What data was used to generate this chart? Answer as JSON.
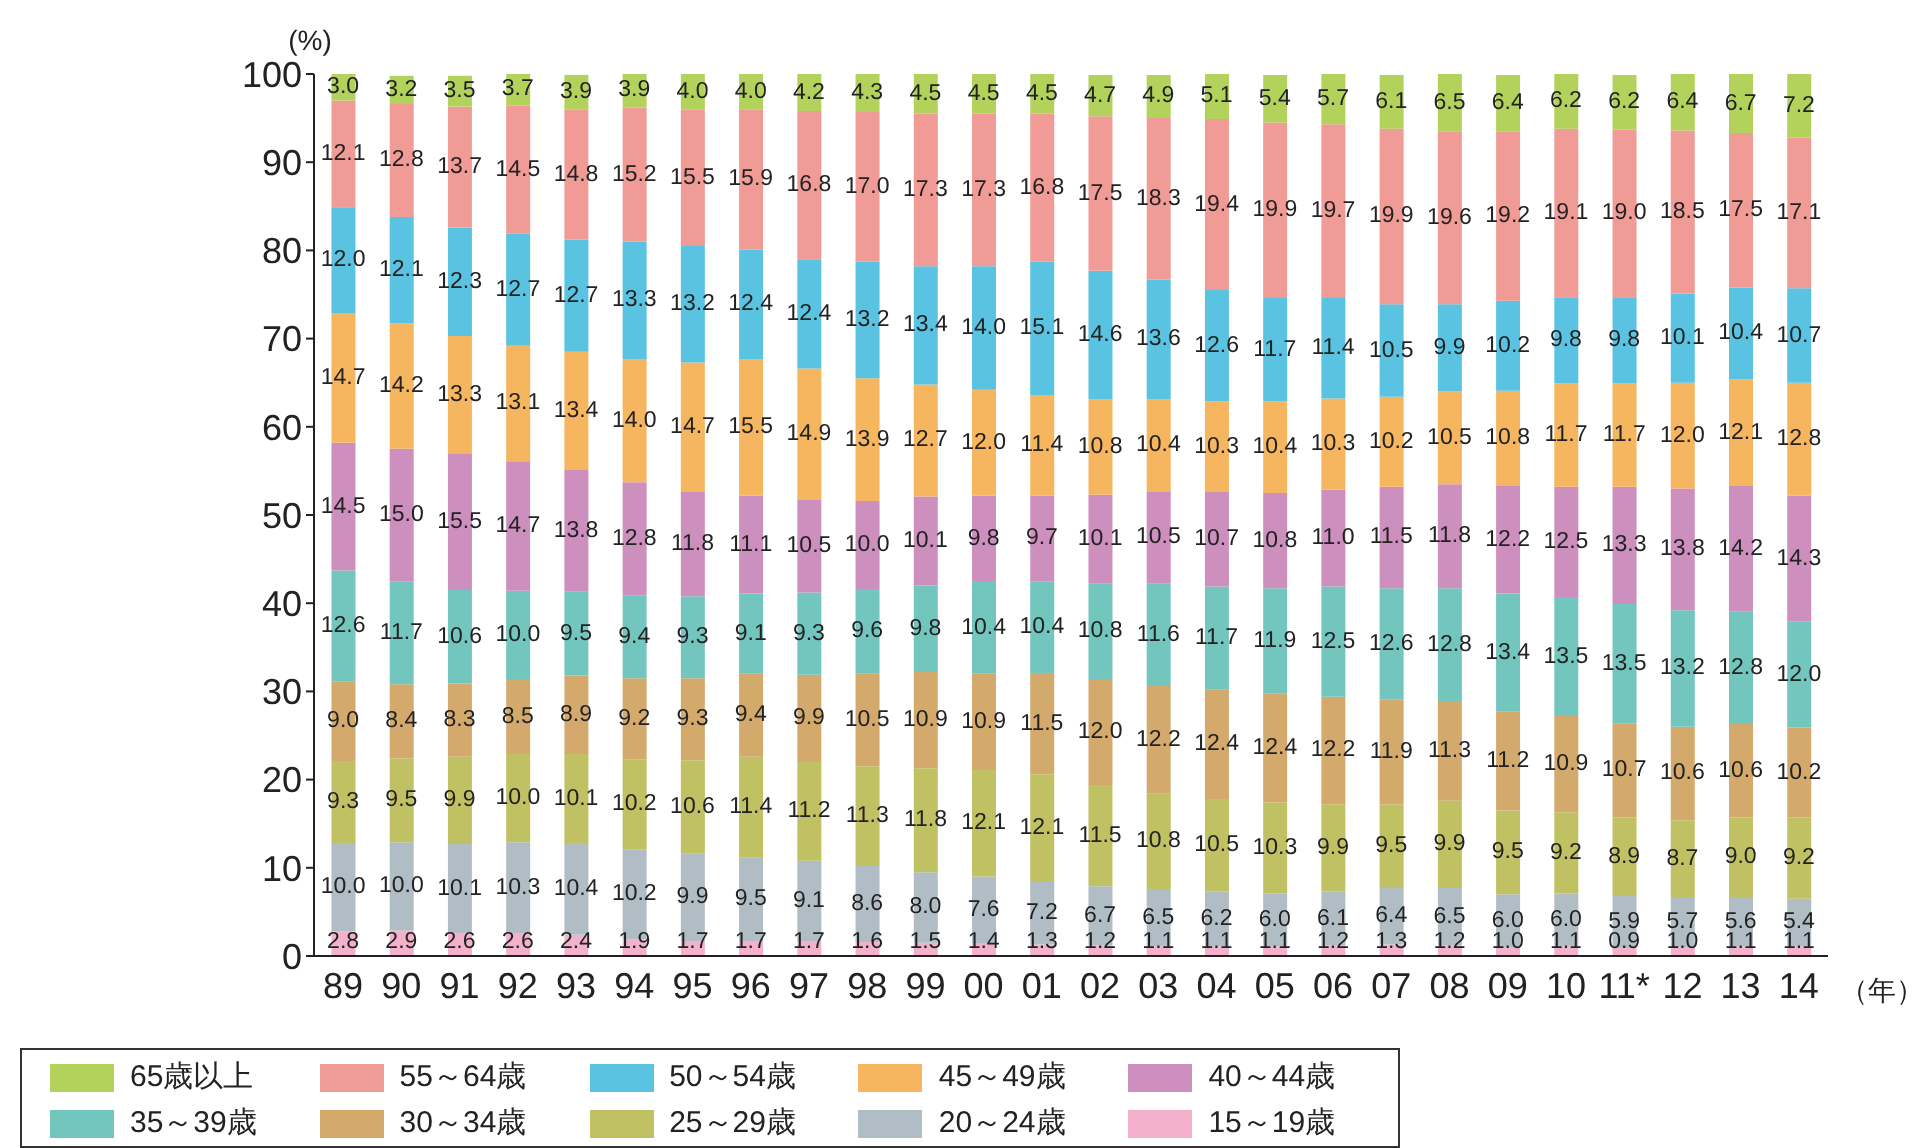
{
  "chart_data": {
    "type": "bar",
    "stacked": true,
    "ylabel": "(%)",
    "xlabel": "（年）",
    "categories": [
      "89",
      "90",
      "91",
      "92",
      "93",
      "94",
      "95",
      "96",
      "97",
      "98",
      "99",
      "00",
      "01",
      "02",
      "03",
      "04",
      "05",
      "06",
      "07",
      "08",
      "09",
      "10",
      "11*",
      "12",
      "13",
      "14"
    ],
    "ylim": [
      0,
      100
    ],
    "yticks": [
      0,
      10,
      20,
      30,
      40,
      50,
      60,
      70,
      80,
      90,
      100
    ],
    "legend": "bottom",
    "series": [
      {
        "name": "15～19歳",
        "color": "#f3b1cb",
        "values": [
          2.8,
          2.9,
          2.6,
          2.6,
          2.4,
          1.9,
          1.7,
          1.7,
          1.7,
          1.6,
          1.5,
          1.4,
          1.3,
          1.2,
          1.1,
          1.1,
          1.1,
          1.2,
          1.3,
          1.2,
          1.0,
          1.1,
          0.9,
          1.0,
          1.1,
          1.1
        ],
        "value_labels": [
          "2.8",
          "2.9",
          "2.6",
          "2.6",
          "2.4",
          "1.9",
          "1.7",
          "1.7",
          "1.7",
          "1.6",
          "1.5",
          "1.4",
          "1.3",
          "1.2",
          "1.1",
          "1.1",
          "1.1",
          "1.2",
          "1.3",
          "1.2",
          "1.0",
          "1.1",
          "0.9",
          "1.0",
          "1.1",
          "1.1"
        ]
      },
      {
        "name": "20～24歳",
        "color": "#b1bdc4",
        "values": [
          10.0,
          10.0,
          10.1,
          10.3,
          10.4,
          10.2,
          9.9,
          9.5,
          9.1,
          8.6,
          8.0,
          7.6,
          7.2,
          6.7,
          6.5,
          6.2,
          6.0,
          6.1,
          6.4,
          6.5,
          6.0,
          6.0,
          5.9,
          5.7,
          5.6,
          5.4
        ],
        "value_labels": [
          "10.0",
          "10.0",
          "10.1",
          "10.3",
          "10.4",
          "10.2",
          "9.9",
          "9.5",
          "9.1",
          "8.6",
          "8.0",
          "7.6",
          "7.2",
          "6.7",
          "6.5",
          "6.2",
          "6.0",
          "6.1",
          "6.4",
          "6.5",
          "6.0",
          "6.0",
          "5.9",
          "5.7",
          "5.6",
          "5.4"
        ]
      },
      {
        "name": "25～29歳",
        "color": "#c0c162",
        "values": [
          9.3,
          9.5,
          9.9,
          10.0,
          10.1,
          10.2,
          10.6,
          11.4,
          11.2,
          11.3,
          11.8,
          12.1,
          12.1,
          11.5,
          10.8,
          10.5,
          10.3,
          9.9,
          9.5,
          9.9,
          9.5,
          9.2,
          8.9,
          8.7,
          9.0,
          9.2
        ],
        "value_labels": [
          "9.3",
          "9.5",
          "9.9",
          "10.0",
          "10.1",
          "10.2",
          "10.6",
          "11.4",
          "11.2",
          "11.3",
          "11.8",
          "12.1",
          "12.1",
          "11.5",
          "10.8",
          "10.5",
          "10.3",
          "9.9",
          "9.5",
          "9.9",
          "9.5",
          "9.2",
          "8.9",
          "8.7",
          "9.0",
          "9.2"
        ]
      },
      {
        "name": "30～34歳",
        "color": "#d3aa6c",
        "values": [
          9.0,
          8.4,
          8.3,
          8.5,
          8.9,
          9.2,
          9.3,
          9.4,
          9.9,
          10.5,
          10.9,
          10.9,
          11.5,
          12.0,
          12.2,
          12.4,
          12.4,
          12.2,
          11.9,
          11.3,
          11.2,
          10.9,
          10.7,
          10.6,
          10.6,
          10.2
        ],
        "value_labels": [
          "9.0",
          "8.4",
          "8.3",
          "8.5",
          "8.9",
          "9.2",
          "9.3",
          "9.4",
          "9.9",
          "10.5",
          "10.9",
          "10.9",
          "11.5",
          "12.0",
          "12.2",
          "12.4",
          "12.4",
          "12.2",
          "11.9",
          "11.3",
          "11.2",
          "10.9",
          "10.7",
          "10.6",
          "10.6",
          "10.2"
        ]
      },
      {
        "name": "35～39歳",
        "color": "#73c6bd",
        "values": [
          12.6,
          11.7,
          10.6,
          10.0,
          9.5,
          9.4,
          9.3,
          9.1,
          9.3,
          9.6,
          9.8,
          10.4,
          10.4,
          10.8,
          11.6,
          11.7,
          11.9,
          12.5,
          12.6,
          12.8,
          13.4,
          13.5,
          13.5,
          13.2,
          12.8,
          12.0
        ],
        "value_labels": [
          "12.6",
          "11.7",
          "10.6",
          "10.0",
          "9.5",
          "9.4",
          "9.3",
          "9.1",
          "9.3",
          "9.6",
          "9.8",
          "10.4",
          "10.4",
          "10.8",
          "11.6",
          "11.7",
          "11.9",
          "12.5",
          "12.6",
          "12.8",
          "13.4",
          "13.5",
          "13.5",
          "13.2",
          "12.8",
          "12.0"
        ]
      },
      {
        "name": "40～44歳",
        "color": "#cd8fbe",
        "values": [
          14.5,
          15.0,
          15.5,
          14.7,
          13.8,
          12.8,
          11.8,
          11.1,
          10.5,
          10.0,
          10.1,
          9.8,
          9.7,
          10.1,
          10.5,
          10.7,
          10.8,
          11.0,
          11.5,
          11.8,
          12.2,
          12.5,
          13.3,
          13.8,
          14.2,
          14.3
        ],
        "value_labels": [
          "14.5",
          "15.0",
          "15.5",
          "14.7",
          "13.8",
          "12.8",
          "11.8",
          "11.1",
          "10.5",
          "10.0",
          "10.1",
          "9.8",
          "9.7",
          "10.1",
          "10.5",
          "10.7",
          "10.8",
          "11.0",
          "11.5",
          "11.8",
          "12.2",
          "12.5",
          "13.3",
          "13.8",
          "14.2",
          "14.3"
        ]
      },
      {
        "name": "45～49歳",
        "color": "#f6b55f",
        "values": [
          14.7,
          14.2,
          13.3,
          13.1,
          13.4,
          14.0,
          14.7,
          15.5,
          14.9,
          13.9,
          12.7,
          12.0,
          11.4,
          10.8,
          10.4,
          10.3,
          10.4,
          10.3,
          10.2,
          10.5,
          10.8,
          11.7,
          11.7,
          12.0,
          12.1,
          12.8
        ],
        "value_labels": [
          "14.7",
          "14.2",
          "13.3",
          "13.1",
          "13.4",
          "14.0",
          "14.7",
          "15.5",
          "14.9",
          "13.9",
          "12.7",
          "12.0",
          "11.4",
          "10.8",
          "10.4",
          "10.3",
          "10.4",
          "10.3",
          "10.2",
          "10.5",
          "10.8",
          "11.7",
          "11.7",
          "12.0",
          "12.1",
          "12.8"
        ]
      },
      {
        "name": "50～54歳",
        "color": "#59c3e1",
        "values": [
          12.0,
          12.1,
          12.3,
          12.7,
          12.7,
          13.3,
          13.2,
          12.4,
          12.4,
          13.2,
          13.4,
          14.0,
          15.1,
          14.6,
          13.6,
          12.6,
          11.7,
          11.4,
          10.5,
          9.9,
          10.2,
          9.8,
          9.8,
          10.1,
          10.4,
          10.7
        ],
        "value_labels": [
          "12.0",
          "12.1",
          "12.3",
          "12.7",
          "12.7",
          "13.3",
          "13.2",
          "12.4",
          "12.4",
          "13.2",
          "13.4",
          "14.0",
          "15.1",
          "14.6",
          "13.6",
          "12.6",
          "11.7",
          "11.4",
          "10.5",
          "9.9",
          "10.2",
          "9.8",
          "9.8",
          "10.1",
          "10.4",
          "10.7"
        ]
      },
      {
        "name": "55～64歳",
        "color": "#f09b95",
        "values": [
          12.1,
          12.8,
          13.7,
          14.5,
          14.8,
          15.2,
          15.5,
          15.9,
          16.8,
          17.0,
          17.3,
          17.3,
          16.8,
          17.5,
          18.3,
          19.4,
          19.9,
          19.7,
          19.9,
          19.6,
          19.2,
          19.1,
          19.0,
          18.5,
          17.5,
          17.1
        ],
        "value_labels": [
          "12.1",
          "12.8",
          "13.7",
          "14.5",
          "14.8",
          "15.2",
          "15.5",
          "15.9",
          "16.8",
          "17.0",
          "17.3",
          "17.3",
          "16.8",
          "17.5",
          "18.3",
          "19.4",
          "19.9",
          "19.7",
          "19.9",
          "19.6",
          "19.2",
          "19.1",
          "19.0",
          "18.5",
          "17.5",
          "17.1"
        ]
      },
      {
        "name": "65歳以上",
        "color": "#b3d25b",
        "values": [
          3.0,
          3.2,
          3.5,
          3.7,
          3.9,
          3.9,
          4.0,
          4.0,
          4.2,
          4.3,
          4.5,
          4.5,
          4.5,
          4.7,
          4.9,
          5.1,
          5.4,
          5.7,
          6.1,
          6.5,
          6.4,
          6.2,
          6.2,
          6.4,
          6.7,
          7.2
        ],
        "value_labels": [
          "3.0",
          "3.2",
          "3.5",
          "3.7",
          "3.9",
          "3.9",
          "4.0",
          "4.0",
          "4.2",
          "4.3",
          "4.5",
          "4.5",
          "4.5",
          "4.7",
          "4.9",
          "5.1",
          "5.4",
          "5.7",
          "6.1",
          "6.5",
          "6.4",
          "6.2",
          "6.2",
          "6.4",
          "6.7",
          "7.2"
        ]
      }
    ]
  }
}
